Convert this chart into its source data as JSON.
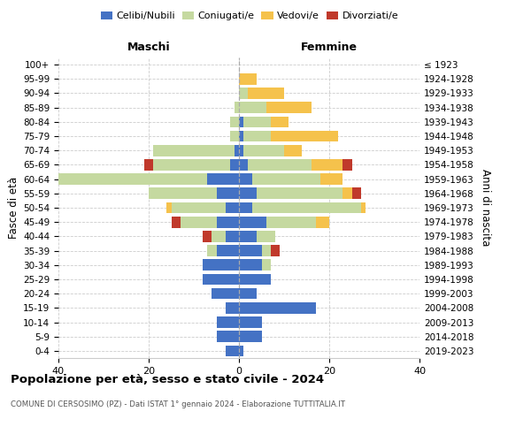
{
  "age_groups": [
    "0-4",
    "5-9",
    "10-14",
    "15-19",
    "20-24",
    "25-29",
    "30-34",
    "35-39",
    "40-44",
    "45-49",
    "50-54",
    "55-59",
    "60-64",
    "65-69",
    "70-74",
    "75-79",
    "80-84",
    "85-89",
    "90-94",
    "95-99",
    "100+"
  ],
  "birth_years": [
    "2019-2023",
    "2014-2018",
    "2009-2013",
    "2004-2008",
    "1999-2003",
    "1994-1998",
    "1989-1993",
    "1984-1988",
    "1979-1983",
    "1974-1978",
    "1969-1973",
    "1964-1968",
    "1959-1963",
    "1954-1958",
    "1949-1953",
    "1944-1948",
    "1939-1943",
    "1934-1938",
    "1929-1933",
    "1924-1928",
    "≤ 1923"
  ],
  "colors": {
    "celibi": "#4472c4",
    "coniugati": "#c5d9a0",
    "vedovi": "#f5c24c",
    "divorziati": "#c0392b"
  },
  "maschi": {
    "celibi": [
      3,
      5,
      5,
      3,
      6,
      8,
      8,
      5,
      3,
      5,
      3,
      5,
      7,
      2,
      1,
      0,
      0,
      0,
      0,
      0,
      0
    ],
    "coniugati": [
      0,
      0,
      0,
      0,
      0,
      0,
      0,
      2,
      3,
      8,
      12,
      15,
      34,
      17,
      18,
      2,
      2,
      1,
      0,
      0,
      0
    ],
    "vedovi": [
      0,
      0,
      0,
      0,
      0,
      0,
      0,
      0,
      0,
      0,
      1,
      0,
      1,
      0,
      0,
      0,
      0,
      0,
      0,
      0,
      0
    ],
    "divorziati": [
      0,
      0,
      0,
      0,
      0,
      0,
      0,
      0,
      2,
      2,
      0,
      0,
      0,
      2,
      0,
      0,
      0,
      0,
      0,
      0,
      0
    ]
  },
  "femmine": {
    "celibi": [
      1,
      5,
      5,
      17,
      4,
      7,
      5,
      5,
      4,
      6,
      3,
      4,
      3,
      2,
      1,
      1,
      1,
      0,
      0,
      0,
      0
    ],
    "coniugati": [
      0,
      0,
      0,
      0,
      0,
      0,
      2,
      2,
      4,
      11,
      24,
      19,
      15,
      14,
      9,
      6,
      6,
      6,
      2,
      0,
      0
    ],
    "vedovi": [
      0,
      0,
      0,
      0,
      0,
      0,
      0,
      0,
      0,
      3,
      1,
      2,
      5,
      7,
      4,
      15,
      4,
      10,
      8,
      4,
      0
    ],
    "divorziati": [
      0,
      0,
      0,
      0,
      0,
      0,
      0,
      2,
      0,
      0,
      0,
      2,
      0,
      2,
      0,
      0,
      0,
      0,
      0,
      0,
      0
    ]
  },
  "xlim": 40,
  "title": "Popolazione per età, sesso e stato civile - 2024",
  "subtitle": "COMUNE DI CERSOSIMO (PZ) - Dati ISTAT 1° gennaio 2024 - Elaborazione TUTTITALIA.IT",
  "ylabel_left": "Fasce di età",
  "ylabel_right": "Anni di nascita",
  "xlabel_maschi": "Maschi",
  "xlabel_femmine": "Femmine"
}
